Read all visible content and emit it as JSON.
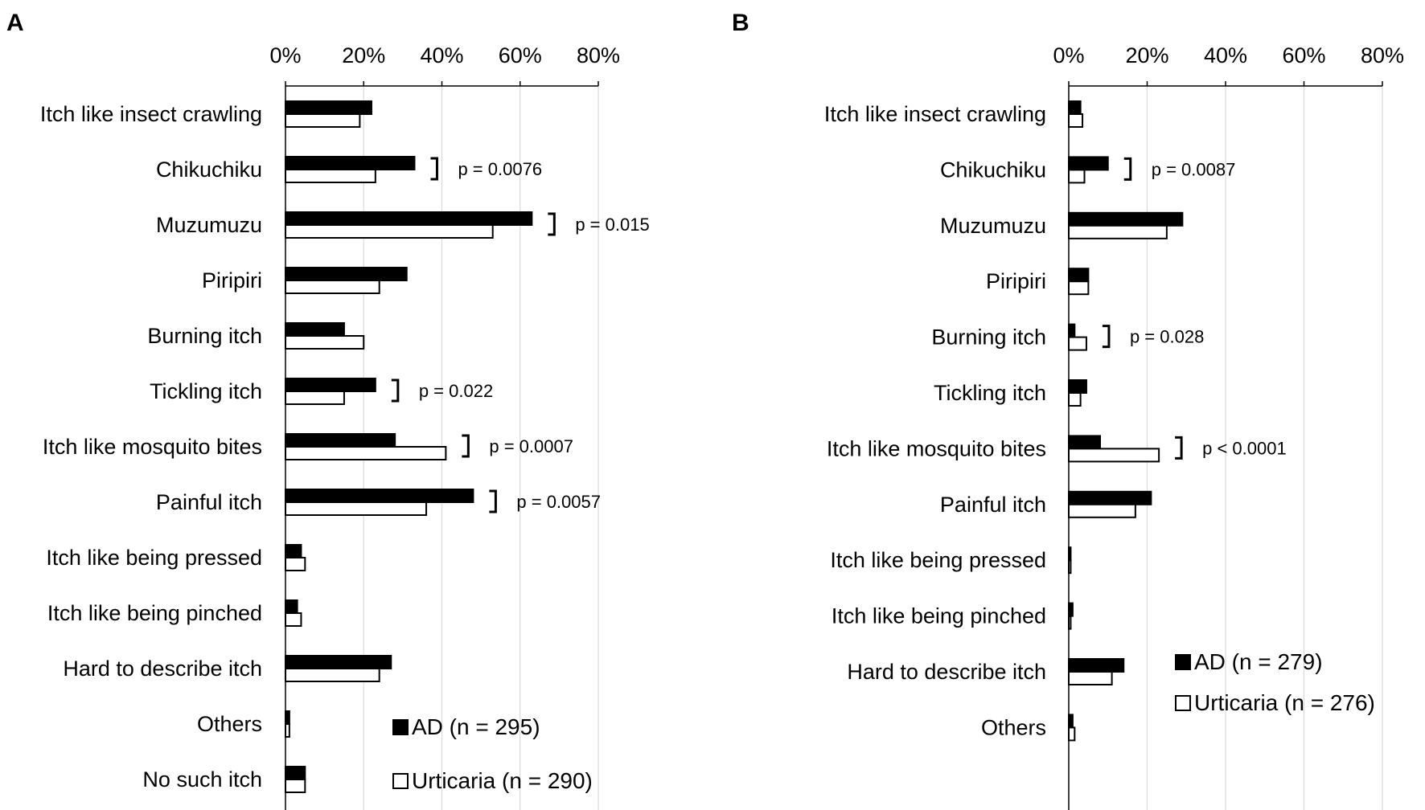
{
  "chart_data": [
    {
      "type": "bar",
      "orientation": "horizontal",
      "panel_label": "A",
      "xlim": [
        0,
        80
      ],
      "x_ticks": [
        "0%",
        "20%",
        "40%",
        "60%",
        "80%"
      ],
      "x_axis_position": "top",
      "grid": true,
      "categories": [
        "Itch like insect crawling",
        "Chikuchiku",
        "Muzumuzu",
        "Piripiri",
        "Burning itch",
        "Tickling itch",
        "Itch like mosquito bites",
        "Painful itch",
        "Itch like being pressed",
        "Itch like being pinched",
        "Hard to describe itch",
        "Others",
        "No such itch"
      ],
      "series": [
        {
          "name": "AD (n = 295)",
          "color": "#000000",
          "values": [
            22,
            33,
            63,
            31,
            15,
            23,
            28,
            48,
            4,
            3,
            27,
            1,
            5
          ]
        },
        {
          "name": "Urticaria (n = 290)",
          "color": "#ffffff",
          "values": [
            19,
            23,
            53,
            24,
            20,
            15,
            41,
            36,
            5,
            4,
            24,
            1,
            5
          ]
        }
      ],
      "annotations": [
        {
          "category": "Chikuchiku",
          "text": "p = 0.0076"
        },
        {
          "category": "Muzumuzu",
          "text": "p = 0.015"
        },
        {
          "category": "Tickling itch",
          "text": "p = 0.022"
        },
        {
          "category": "Itch like mosquito bites",
          "text": "p = 0.0007"
        },
        {
          "category": "Painful itch",
          "text": "p = 0.0057"
        }
      ],
      "legend_placement": "bottom-right"
    },
    {
      "type": "bar",
      "orientation": "horizontal",
      "panel_label": "B",
      "xlim": [
        0,
        80
      ],
      "x_ticks": [
        "0%",
        "20%",
        "40%",
        "60%",
        "80%"
      ],
      "x_axis_position": "top",
      "grid": true,
      "categories": [
        "Itch like insect crawling",
        "Chikuchiku",
        "Muzumuzu",
        "Piripiri",
        "Burning itch",
        "Tickling itch",
        "Itch like mosquito bites",
        "Painful itch",
        "Itch like being pressed",
        "Itch like being pinched",
        "Hard to describe itch",
        "Others"
      ],
      "series": [
        {
          "name": "AD (n = 279)",
          "color": "#000000",
          "values": [
            3,
            10,
            29,
            5,
            1.5,
            4.5,
            8,
            21,
            0.5,
            1,
            14,
            1
          ]
        },
        {
          "name": "Urticaria (n = 276)",
          "color": "#ffffff",
          "values": [
            3.5,
            4,
            25,
            5,
            4.5,
            3,
            23,
            17,
            0.5,
            0.5,
            11,
            1.5
          ]
        }
      ],
      "annotations": [
        {
          "category": "Chikuchiku",
          "text": "p = 0.0087"
        },
        {
          "category": "Burning itch",
          "text": "p = 0.028"
        },
        {
          "category": "Itch like mosquito bites",
          "text": "p < 0.0001"
        }
      ],
      "legend_placement": "bottom-right"
    }
  ]
}
